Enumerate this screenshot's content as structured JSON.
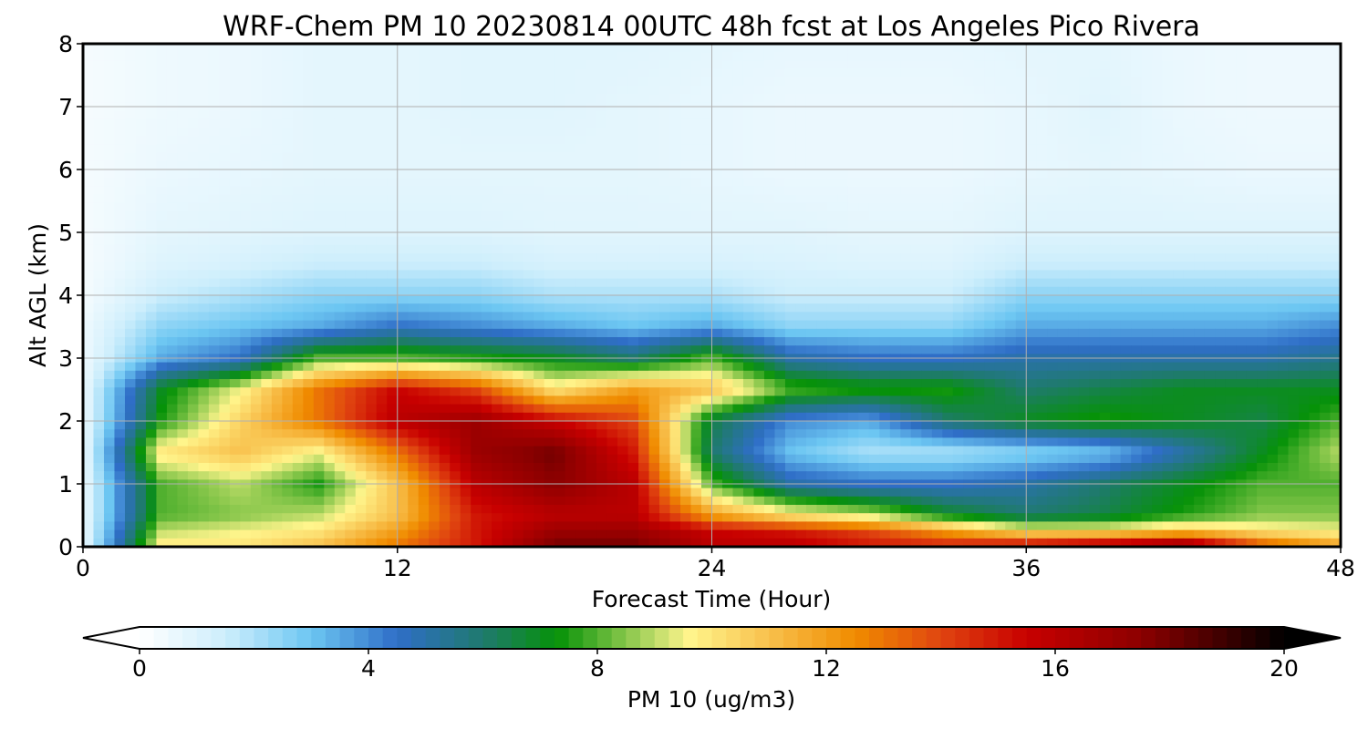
{
  "chart_data": {
    "type": "heatmap",
    "title": "WRF-Chem PM 10  20230814 00UTC 48h fcst at Los Angeles Pico Rivera",
    "xlabel": "Forecast Time (Hour)",
    "ylabel": "Alt AGL (km)",
    "xlim": [
      0,
      48
    ],
    "ylim": [
      0,
      8
    ],
    "x_ticks": [
      0,
      12,
      24,
      36,
      48
    ],
    "y_ticks": [
      0,
      1,
      2,
      3,
      4,
      5,
      6,
      7,
      8
    ],
    "grid": true,
    "colorbar": {
      "label": "PM 10  (ug/m3)",
      "range": [
        0,
        20
      ],
      "ticks": [
        0,
        4,
        8,
        12,
        16,
        20
      ],
      "extend": "both",
      "stops": [
        {
          "v": 0,
          "c": "#ffffff"
        },
        {
          "v": 1.5,
          "c": "#cdeefc"
        },
        {
          "v": 3,
          "c": "#6cc6f2"
        },
        {
          "v": 4.5,
          "c": "#2f6ec7"
        },
        {
          "v": 6,
          "c": "#1f7a6e"
        },
        {
          "v": 7.3,
          "c": "#069208"
        },
        {
          "v": 8.5,
          "c": "#86c64a"
        },
        {
          "v": 9.6,
          "c": "#fff58c"
        },
        {
          "v": 11,
          "c": "#f8c04c"
        },
        {
          "v": 12.5,
          "c": "#f08c00"
        },
        {
          "v": 14,
          "c": "#e04510"
        },
        {
          "v": 15.5,
          "c": "#c80000"
        },
        {
          "v": 17.5,
          "c": "#8c0000"
        },
        {
          "v": 19,
          "c": "#3a0000"
        },
        {
          "v": 20,
          "c": "#000000"
        }
      ]
    },
    "x": [
      0,
      3,
      6,
      9,
      12,
      15,
      18,
      21,
      24,
      27,
      30,
      33,
      36,
      39,
      42,
      45,
      48
    ],
    "y": [
      0,
      0.25,
      0.5,
      1,
      1.5,
      2,
      2.5,
      3,
      3.5,
      4,
      4.5,
      5,
      6,
      7,
      8
    ],
    "z": [
      [
        0.5,
        10,
        10,
        11,
        13,
        15,
        18,
        18,
        16,
        16,
        15,
        15,
        16,
        17,
        18,
        14,
        12
      ],
      [
        0.5,
        9,
        9.5,
        10,
        12,
        15,
        17,
        17,
        15.5,
        15,
        14,
        12,
        10,
        10,
        11,
        10,
        9.5
      ],
      [
        0.5,
        8,
        8.5,
        9,
        11,
        15,
        16,
        16,
        12,
        10,
        9,
        7,
        6,
        6.5,
        7.5,
        8.5,
        8.5
      ],
      [
        0.5,
        8,
        9,
        7.5,
        11,
        16,
        17.5,
        16,
        8,
        5,
        4.5,
        4.5,
        5,
        6,
        7,
        8,
        8
      ],
      [
        0.5,
        10,
        11,
        9.5,
        13,
        17,
        18,
        15,
        6,
        3,
        2,
        2,
        2.5,
        3,
        5,
        7,
        9
      ],
      [
        0.5,
        7.5,
        10.5,
        13,
        16,
        17,
        15.5,
        14,
        6.5,
        4,
        3.5,
        6,
        7,
        7.5,
        7,
        6.5,
        8
      ],
      [
        0.5,
        7,
        9.5,
        13,
        15.5,
        14,
        10,
        12,
        11,
        8,
        7.5,
        7.5,
        6,
        6.5,
        7,
        7,
        7
      ],
      [
        0.5,
        3.5,
        4.5,
        8,
        8,
        7.5,
        7,
        6,
        8,
        5,
        4.5,
        4.5,
        5,
        5,
        5,
        5,
        5.5
      ],
      [
        0.5,
        2.5,
        3,
        3.5,
        4.5,
        4,
        3.5,
        3,
        3.5,
        2.5,
        2.5,
        2.5,
        3.5,
        3.5,
        3.5,
        3.5,
        4
      ],
      [
        0.3,
        1.5,
        2,
        2.5,
        2.5,
        2.5,
        2,
        2,
        2,
        1.5,
        1.5,
        1.5,
        2.5,
        2.5,
        2.5,
        2.5,
        2.5
      ],
      [
        0.3,
        1,
        1.2,
        1.5,
        1.5,
        1.5,
        1.2,
        1.2,
        1.2,
        1.1,
        1,
        1,
        1.5,
        1.5,
        1.5,
        1.5,
        1.5
      ],
      [
        0.3,
        0.8,
        0.9,
        1,
        1,
        1,
        0.9,
        0.9,
        0.9,
        0.9,
        0.8,
        0.8,
        1,
        1,
        1,
        1,
        1
      ],
      [
        0.3,
        0.6,
        0.7,
        0.8,
        0.8,
        0.8,
        0.8,
        0.8,
        0.7,
        0.6,
        0.6,
        0.6,
        0.7,
        0.8,
        0.7,
        0.6,
        0.6
      ],
      [
        0.3,
        0.5,
        0.6,
        0.8,
        0.8,
        0.9,
        0.9,
        0.8,
        0.7,
        0.6,
        0.6,
        0.6,
        0.7,
        0.9,
        0.6,
        0.5,
        0.5
      ],
      [
        0.3,
        0.5,
        0.6,
        0.8,
        0.8,
        0.9,
        0.9,
        0.9,
        0.8,
        0.7,
        0.7,
        0.7,
        0.8,
        0.8,
        0.6,
        0.5,
        0.5
      ]
    ]
  }
}
